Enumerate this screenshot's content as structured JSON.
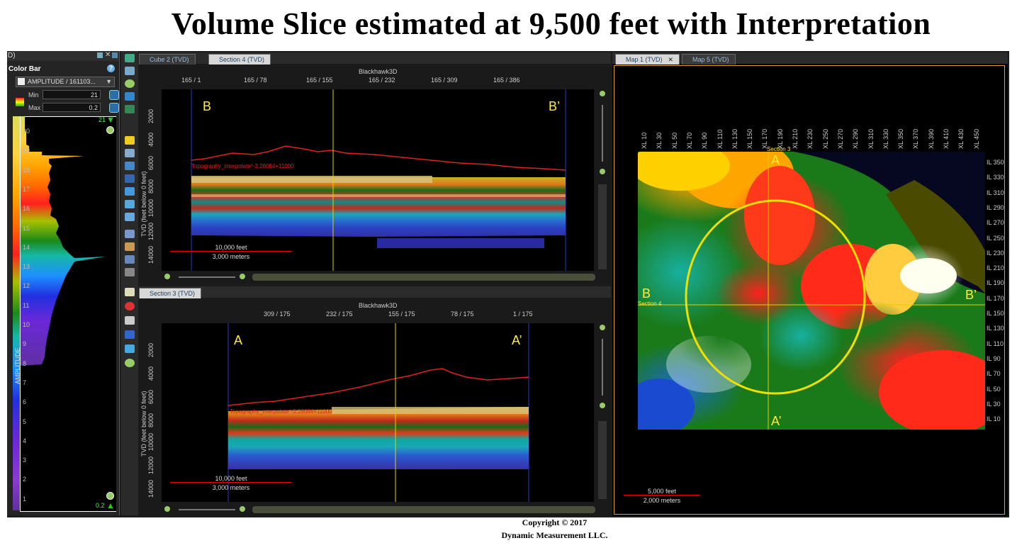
{
  "title": "Volume Slice estimated at 9,500 feet with Interpretation",
  "footer": {
    "copyright": "Copyright  © 2017",
    "company": "Dynamic Measurement LLC."
  },
  "colorbar_panel": {
    "header": "D)",
    "title": "Color Bar",
    "attribute": "AMPLITUDE / 161103...",
    "min_label": "Min",
    "min_value": "21",
    "max_label": "Max",
    "max_value": "0.2",
    "top_value": "21",
    "bottom_value": "0.2",
    "axis_label": "AMPLITUDE",
    "ticks": [
      "20",
      "19",
      "18",
      "17",
      "16",
      "15",
      "14",
      "13",
      "12",
      "11",
      "10",
      "9",
      "8",
      "7",
      "6",
      "5",
      "4",
      "3",
      "2",
      "1"
    ]
  },
  "upper_section": {
    "tabs": [
      {
        "label": "Cube 2 (TVD)"
      },
      {
        "label": "Section 4 (TVD)"
      }
    ],
    "volume_name": "Blackhawk3D",
    "top_ticks": [
      "165 / 1",
      "165 / 78",
      "165 / 155",
      "165 / 232",
      "165 / 309",
      "165 / 386"
    ],
    "depth_ticks": [
      "2000",
      "4000",
      "6000",
      "8000",
      "10000",
      "12000",
      "14000"
    ],
    "ylabel": "TVD (feet below 0 feet)",
    "left_label": "B",
    "right_label": "B’",
    "horizon_label": "Topography_interpolate*-3.28084+11000",
    "scale": {
      "feet": "10,000 feet",
      "meters": "3,000 meters"
    }
  },
  "lower_section": {
    "tabs": [
      {
        "label": "Section 3 (TVD)"
      }
    ],
    "volume_name": "Blackhawk3D",
    "top_ticks": [
      "309 / 175",
      "232 / 175",
      "155 / 175",
      "78 / 175",
      "1 / 175"
    ],
    "depth_ticks": [
      "2000",
      "4000",
      "6000",
      "8000",
      "10000",
      "12000",
      "14000"
    ],
    "ylabel": "TVD (feet below 0 feet)",
    "left_label": "A",
    "right_label": "A’",
    "horizon_label": "Topography_interpolate*-3.28084+11000",
    "scale": {
      "feet": "10,000 feet",
      "meters": "3,000 meters"
    }
  },
  "map": {
    "tabs": [
      {
        "label": "Map 1 (TVD)"
      },
      {
        "label": "Map 5 (TVD)"
      }
    ],
    "xl_ticks": [
      "XL 10",
      "XL 30",
      "XL 50",
      "XL 70",
      "XL 90",
      "XL 110",
      "XL 130",
      "XL 150",
      "XL 170",
      "XL 190",
      "XL 210",
      "XL 230",
      "XL 250",
      "XL 270",
      "XL 290",
      "XL 310",
      "XL 330",
      "XL 350",
      "XL 370",
      "XL 390",
      "XL 410",
      "XL 430",
      "XL 450"
    ],
    "il_ticks": [
      "IL 350",
      "IL 330",
      "IL 310",
      "IL 290",
      "IL 270",
      "IL 250",
      "IL 230",
      "IL 210",
      "IL 190",
      "IL 170",
      "IL 150",
      "IL 130",
      "IL 110",
      "IL 90",
      "IL 70",
      "IL 50",
      "IL 30",
      "IL 10"
    ],
    "labels": {
      "A": "A",
      "A_prime": "A’",
      "B": "B",
      "B_prime": "B’",
      "section3": "Section 3",
      "section4": "Section 4"
    },
    "scale": {
      "feet": "5,000 feet",
      "meters": "2,000 meters"
    }
  }
}
